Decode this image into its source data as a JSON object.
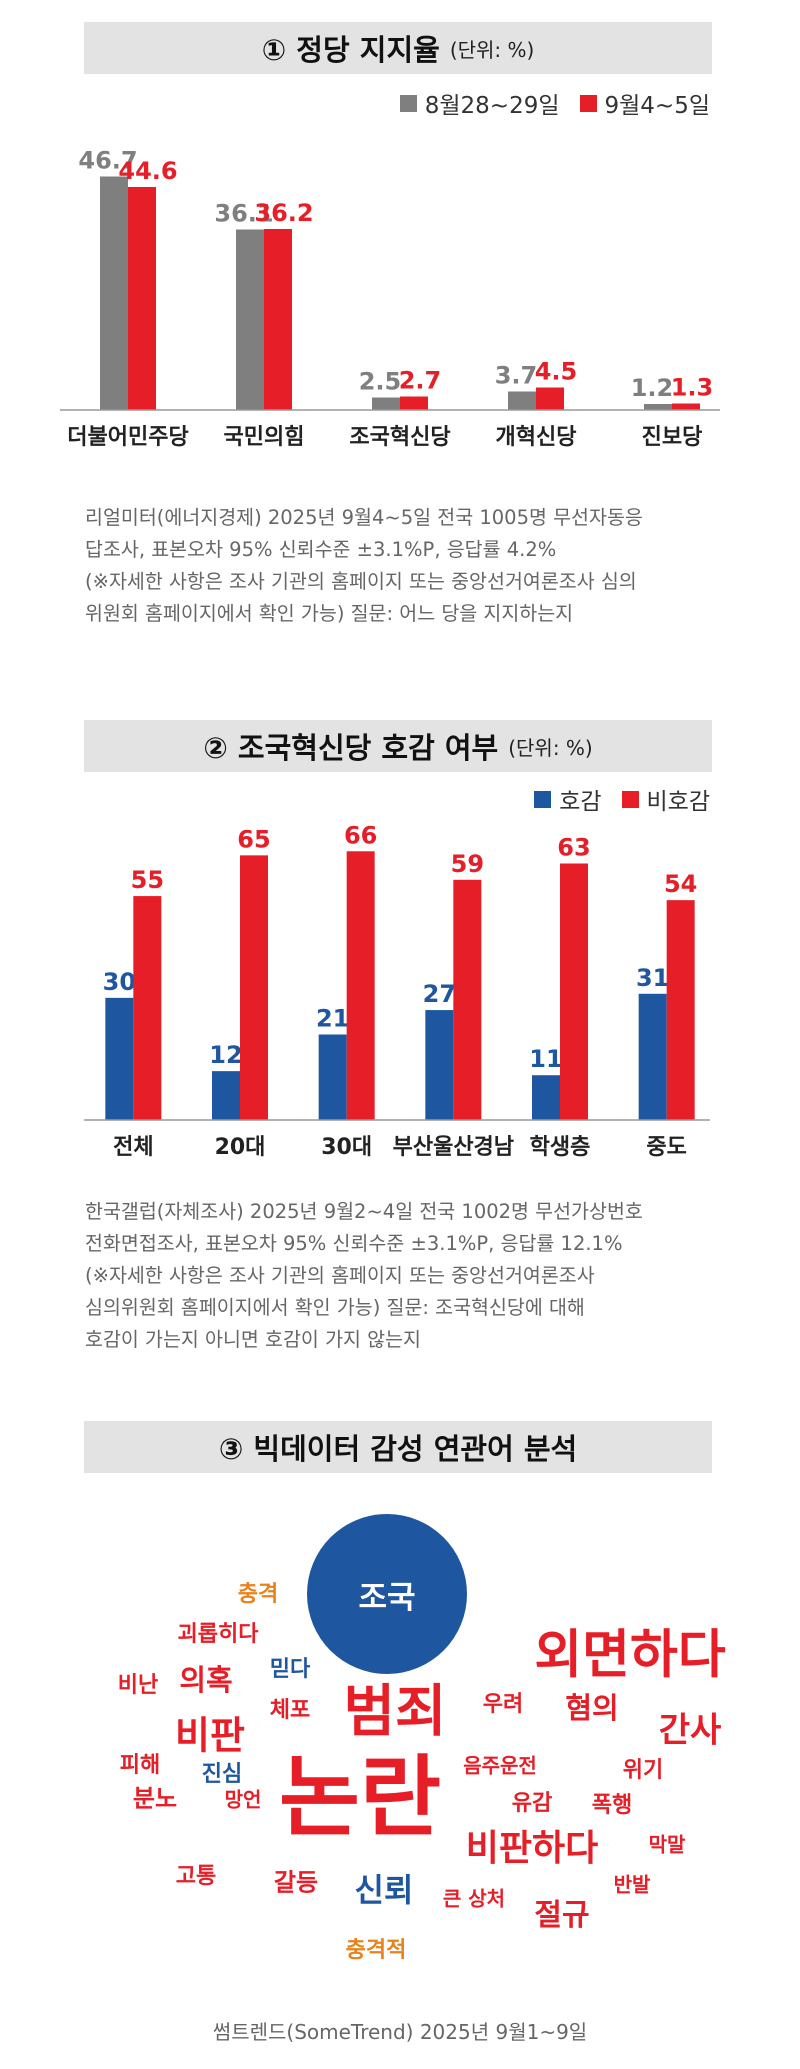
{
  "colors": {
    "gray": "#7f7f80",
    "red": "#e61e27",
    "blue": "#1e56a0",
    "orange": "#e8821c"
  },
  "section1": {
    "title": "① 정당 지지율",
    "unit": "(단위: %)",
    "legend": [
      "8월28~29일",
      "9월4~5일"
    ],
    "note": [
      "리얼미터(에너지경제) 2025년 9월4~5일 전국 1005명 무선자동응",
      "답조사, 표본오차 95% 신뢰수준 ±3.1%P, 응답률 4.2%",
      "(※자세한 사항은 조사 기관의 홈페이지 또는 중앙선거여론조사 심의",
      "위원회 홈페이지에서 확인 가능) 질문: 어느 당을 지지하는지"
    ]
  },
  "section2": {
    "title": "② 조국혁신당 호감 여부",
    "unit": "(단위: %)",
    "legend": [
      "호감",
      "비호감"
    ],
    "note": [
      "한국갤럽(자체조사) 2025년 9월2~4일 전국 1002명 무선가상번호",
      "전화면접조사, 표본오차 95% 신뢰수준 ±3.1%P, 응답률 12.1%",
      "(※자세한 사항은 조사 기관의 홈페이지 또는 중앙선거여론조사",
      "심의위원회 홈페이지에서 확인 가능) 질문: 조국혁신당에 대해",
      "호감이 가는지 아니면 호감이 가지 않는지"
    ]
  },
  "section3": {
    "title": "③ 빅데이터 감성 연관어 분석",
    "center": "조국",
    "words": [
      {
        "text": "충격",
        "color": "orange",
        "size": 22
      },
      {
        "text": "괴롭히다",
        "color": "red",
        "size": 22
      },
      {
        "text": "외면하다",
        "color": "red",
        "size": 52
      },
      {
        "text": "믿다",
        "color": "blue",
        "size": 22
      },
      {
        "text": "의혹",
        "color": "red",
        "size": 29
      },
      {
        "text": "비난",
        "color": "red",
        "size": 22
      },
      {
        "text": "체포",
        "color": "red",
        "size": 22
      },
      {
        "text": "범죄",
        "color": "red",
        "size": 56
      },
      {
        "text": "우려",
        "color": "red",
        "size": 22
      },
      {
        "text": "혐의",
        "color": "red",
        "size": 29
      },
      {
        "text": "간사",
        "color": "red",
        "size": 34
      },
      {
        "text": "비판",
        "color": "red",
        "size": 38
      },
      {
        "text": "음주운전",
        "color": "red",
        "size": 20
      },
      {
        "text": "피해",
        "color": "red",
        "size": 22
      },
      {
        "text": "진심",
        "color": "blue",
        "size": 22
      },
      {
        "text": "위기",
        "color": "red",
        "size": 22
      },
      {
        "text": "분노",
        "color": "red",
        "size": 24
      },
      {
        "text": "망언",
        "color": "red",
        "size": 20
      },
      {
        "text": "논란",
        "color": "red",
        "size": 88
      },
      {
        "text": "유감",
        "color": "red",
        "size": 22
      },
      {
        "text": "폭행",
        "color": "red",
        "size": 22
      },
      {
        "text": "막말",
        "color": "red",
        "size": 20
      },
      {
        "text": "비판하다",
        "color": "red",
        "size": 36
      },
      {
        "text": "고통",
        "color": "red",
        "size": 22
      },
      {
        "text": "갈등",
        "color": "red",
        "size": 24
      },
      {
        "text": "신뢰",
        "color": "blue",
        "size": 32
      },
      {
        "text": "큰 상처",
        "color": "red",
        "size": 20
      },
      {
        "text": "절규",
        "color": "red",
        "size": 30
      },
      {
        "text": "반발",
        "color": "red",
        "size": 20
      },
      {
        "text": "충격적",
        "color": "orange",
        "size": 22
      }
    ]
  },
  "source": "썸트렌드(SomeTrend) 2025년 9월1~9일",
  "chart_data": [
    {
      "type": "bar",
      "title": "① 정당 지지율",
      "ylim": [
        0,
        50
      ],
      "categories": [
        "더불어민주당",
        "국민의힘",
        "조국혁신당",
        "개혁신당",
        "진보당"
      ],
      "series": [
        {
          "name": "8월28~29일",
          "values": [
            46.7,
            36.1,
            2.5,
            3.7,
            1.2
          ],
          "color": "#7f7f80"
        },
        {
          "name": "9월4~5일",
          "values": [
            44.6,
            36.2,
            2.7,
            4.5,
            1.3
          ],
          "color": "#e61e27"
        }
      ]
    },
    {
      "type": "bar",
      "title": "② 조국혁신당 호감 여부",
      "ylim": [
        0,
        70
      ],
      "categories": [
        "전체",
        "20대",
        "30대",
        "부산울산경남",
        "학생층",
        "중도"
      ],
      "series": [
        {
          "name": "호감",
          "values": [
            30,
            12,
            21,
            27,
            11,
            31
          ],
          "color": "#1e56a0"
        },
        {
          "name": "비호감",
          "values": [
            55,
            65,
            66,
            59,
            63,
            54
          ],
          "color": "#e61e27"
        }
      ]
    }
  ]
}
